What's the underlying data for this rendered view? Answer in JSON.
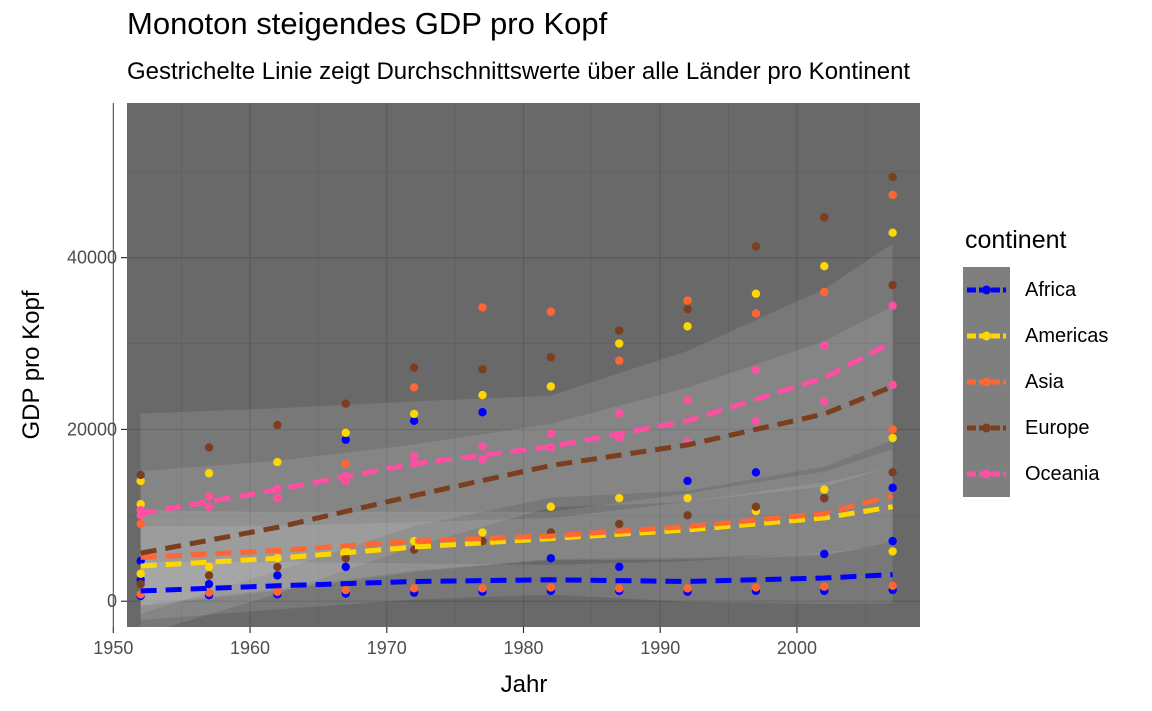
{
  "chart_data": {
    "type": "scatter",
    "title": "Monoton steigendes GDP pro Kopf",
    "subtitle": "Gestrichelte Linie zeigt Durchschnittswerte über alle Länder pro Kontinent",
    "xlabel": "Jahr",
    "ylabel": "GDP pro Kopf",
    "xlim": [
      1951,
      2009
    ],
    "ylim": [
      -3000,
      58000
    ],
    "x_ticks": [
      1950,
      1960,
      1970,
      1980,
      1990,
      2000
    ],
    "x_tick_labels": [
      "1950",
      "1960",
      "1970",
      "1980",
      "1990",
      "2000"
    ],
    "y_ticks": [
      0,
      20000,
      40000
    ],
    "y_tick_labels": [
      "0",
      "20000",
      "40000"
    ],
    "grid": true,
    "legend": {
      "title": "continent",
      "position": "right"
    },
    "background_color": "#696969",
    "series": [
      {
        "name": "Africa",
        "color": "#0000FF",
        "x": [
          1952,
          1952,
          1952,
          1957,
          1957,
          1962,
          1962,
          1967,
          1967,
          1967,
          1972,
          1972,
          1977,
          1977,
          1982,
          1982,
          1987,
          1987,
          1992,
          1992,
          1997,
          1997,
          2002,
          2002,
          2002,
          2007,
          2007,
          2007
        ],
        "y": [
          600,
          2500,
          4700,
          700,
          2000,
          800,
          3000,
          900,
          4000,
          18800,
          1000,
          21000,
          1100,
          22000,
          1200,
          5000,
          1200,
          4000,
          1100,
          14000,
          1200,
          15000,
          1200,
          5500,
          12000,
          1300,
          7000,
          13200
        ],
        "trend": {
          "x": [
            1952,
            1962,
            1972,
            1982,
            1992,
            2002,
            2007
          ],
          "y": [
            1200,
            1800,
            2300,
            2500,
            2300,
            2700,
            3100
          ]
        }
      },
      {
        "name": "Americas",
        "color": "#FFD700",
        "x": [
          1952,
          1952,
          1952,
          1957,
          1957,
          1962,
          1962,
          1967,
          1967,
          1972,
          1972,
          1977,
          1977,
          1982,
          1982,
          1987,
          1987,
          1992,
          1992,
          1997,
          1997,
          2002,
          2002,
          2007,
          2007,
          2007
        ],
        "y": [
          3200,
          11300,
          14000,
          4000,
          14900,
          5000,
          16200,
          6000,
          19600,
          7000,
          21800,
          8000,
          24000,
          11000,
          25000,
          12000,
          30000,
          12000,
          32000,
          10500,
          35800,
          13000,
          39000,
          5800,
          19000,
          42900
        ],
        "trend": {
          "x": [
            1952,
            1962,
            1972,
            1982,
            1992,
            2002,
            2007
          ],
          "y": [
            4100,
            5000,
            6300,
            7300,
            8300,
            9700,
            11000
          ]
        }
      },
      {
        "name": "Asia",
        "color": "#FF6633",
        "x": [
          1952,
          1952,
          1957,
          1957,
          1962,
          1962,
          1967,
          1967,
          1972,
          1972,
          1977,
          1977,
          1982,
          1982,
          1987,
          1987,
          1992,
          1992,
          1997,
          1997,
          2002,
          2002,
          2007,
          2007,
          2007
        ],
        "y": [
          800,
          9000,
          1000,
          11000,
          1100,
          12000,
          1300,
          16000,
          1500,
          24900,
          1500,
          34200,
          1600,
          33700,
          1500,
          28000,
          1500,
          35000,
          1600,
          33500,
          1700,
          36000,
          1800,
          20000,
          47300
        ],
        "trend": {
          "x": [
            1952,
            1962,
            1972,
            1982,
            1992,
            2002,
            2007
          ],
          "y": [
            5100,
            5900,
            7000,
            7600,
            8700,
            10200,
            12300
          ]
        }
      },
      {
        "name": "Europe",
        "color": "#7B3F1F",
        "x": [
          1952,
          1952,
          1957,
          1957,
          1962,
          1962,
          1967,
          1967,
          1972,
          1972,
          1977,
          1977,
          1982,
          1982,
          1987,
          1987,
          1992,
          1992,
          1997,
          1997,
          2002,
          2002,
          2007,
          2007,
          2007
        ],
        "y": [
          2000,
          14700,
          3000,
          17900,
          4000,
          20500,
          5000,
          23000,
          6000,
          27200,
          7000,
          27000,
          8000,
          28400,
          9000,
          31500,
          10000,
          34000,
          11000,
          41300,
          12000,
          44700,
          15000,
          36800,
          49400
        ],
        "trend": {
          "x": [
            1952,
            1962,
            1972,
            1982,
            1992,
            2002,
            2007
          ],
          "y": [
            5600,
            8600,
            12300,
            15800,
            18200,
            21800,
            25000
          ]
        }
      },
      {
        "name": "Oceania",
        "color": "#FF4FA3",
        "x": [
          1952,
          1952,
          1957,
          1957,
          1962,
          1962,
          1967,
          1967,
          1972,
          1972,
          1977,
          1977,
          1982,
          1982,
          1987,
          1987,
          1992,
          1992,
          1997,
          1997,
          2002,
          2002,
          2007,
          2007
        ],
        "y": [
          10000,
          10600,
          11000,
          12200,
          12000,
          13100,
          14000,
          14600,
          16000,
          16900,
          16500,
          18000,
          17900,
          19500,
          19000,
          21900,
          18500,
          23400,
          21000,
          26900,
          23200,
          29800,
          25200,
          34400
        ],
        "trend": {
          "x": [
            1952,
            1962,
            1972,
            1982,
            1992,
            2002,
            2007
          ],
          "y": [
            10200,
            13000,
            16000,
            18000,
            21000,
            26000,
            30200
          ]
        }
      }
    ]
  }
}
